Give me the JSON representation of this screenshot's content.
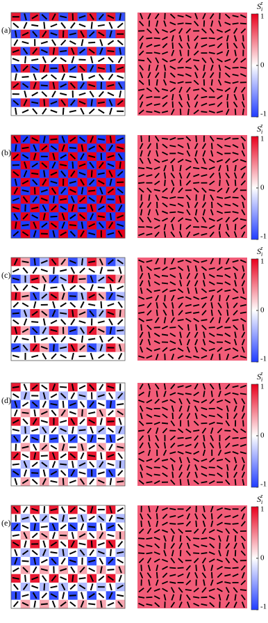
{
  "panels": [
    {
      "label": "(a)"
    },
    {
      "label": "(b)"
    },
    {
      "label": "(c)"
    },
    {
      "label": "(d)"
    },
    {
      "label": "(e)"
    }
  ],
  "colorbar": {
    "label": {
      "base": "S",
      "sub": "i",
      "sup": "z"
    },
    "lim": [
      -1,
      1
    ],
    "ticks": [
      1,
      0,
      -1
    ]
  }
}
